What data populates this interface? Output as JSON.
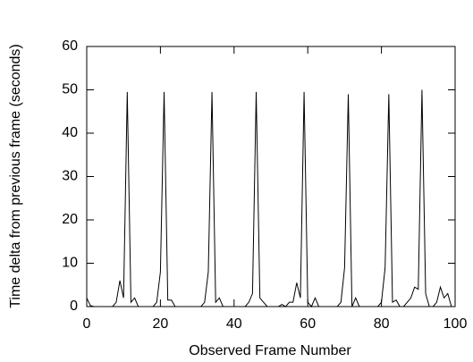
{
  "chart_data": {
    "type": "line",
    "xlabel": "Observed Frame Number",
    "ylabel": "Time delta from previous frame (seconds)",
    "x": [
      0,
      1,
      2,
      3,
      4,
      5,
      6,
      7,
      8,
      9,
      10,
      11,
      12,
      13,
      14,
      15,
      16,
      17,
      18,
      19,
      20,
      21,
      22,
      23,
      24,
      25,
      26,
      27,
      28,
      29,
      30,
      31,
      32,
      33,
      34,
      35,
      36,
      37,
      38,
      39,
      40,
      41,
      42,
      43,
      44,
      45,
      46,
      47,
      48,
      49,
      50,
      51,
      52,
      53,
      54,
      55,
      56,
      57,
      58,
      59,
      60,
      61,
      62,
      63,
      64,
      65,
      66,
      67,
      68,
      69,
      70,
      71,
      72,
      73,
      74,
      75,
      76,
      77,
      78,
      79,
      80,
      81,
      82,
      83,
      84,
      85,
      86,
      87,
      88,
      89,
      90,
      91,
      92,
      93,
      94,
      95,
      96,
      97,
      98,
      99
    ],
    "values": [
      2,
      0.2,
      0,
      0,
      0,
      0,
      0,
      0,
      1,
      6,
      2,
      49.5,
      1,
      2,
      0,
      0,
      0,
      0,
      0,
      1,
      8,
      49.5,
      1.5,
      1.5,
      0,
      0,
      0,
      0,
      0,
      0,
      0,
      0,
      1,
      8,
      49.5,
      1,
      2,
      0,
      0,
      0,
      0,
      0,
      0,
      0,
      1,
      3,
      49.5,
      2,
      1,
      0,
      0,
      0,
      0,
      0.5,
      0,
      1,
      1,
      5.5,
      2,
      49.5,
      1,
      0,
      2,
      0,
      0,
      0,
      0,
      0,
      0,
      1,
      9,
      49,
      0,
      2,
      0,
      0,
      0,
      0,
      0,
      0,
      1,
      9,
      49,
      1,
      1.5,
      0,
      0,
      1,
      2,
      4.5,
      4,
      50,
      3,
      0,
      0,
      1,
      4.5,
      2,
      3,
      0
    ],
    "color": "#000000",
    "xlim": [
      0,
      100
    ],
    "xticks": [
      0,
      20,
      40,
      60,
      80,
      100
    ],
    "ylim": [
      0,
      60
    ],
    "yticks": [
      0,
      10,
      20,
      30,
      40,
      50,
      60
    ]
  }
}
